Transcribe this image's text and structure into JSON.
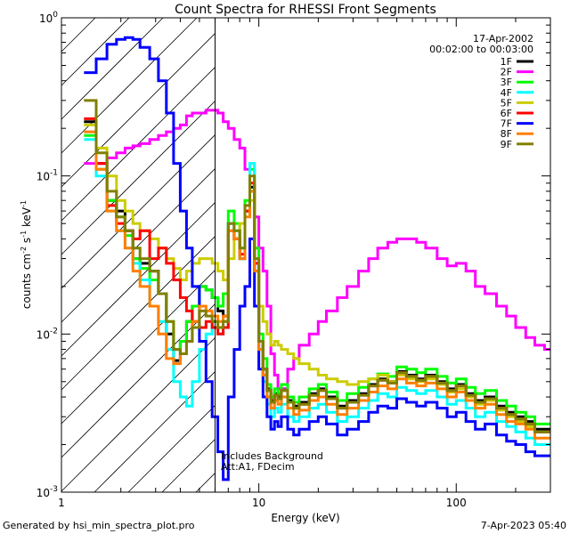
{
  "chart_data": {
    "type": "line",
    "title": "Count Spectra for RHESSI Front Segments",
    "xlabel": "Energy (keV)",
    "ylabel_parts": [
      "counts cm",
      "-2",
      " s",
      "-1",
      " keV",
      "-1"
    ],
    "xscale": "log",
    "yscale": "log",
    "xlim": [
      1.0,
      300
    ],
    "ylim": [
      0.001,
      1.0
    ],
    "xtick_labels": [
      "1",
      "10",
      "100"
    ],
    "xtick_values": [
      1,
      10,
      100
    ],
    "ytick_labels": [
      {
        "base": "10",
        "exp": "0",
        "value": 1
      },
      {
        "base": "10",
        "exp": "-1",
        "value": 0.1
      },
      {
        "base": "10",
        "exp": "-2",
        "value": 0.01
      },
      {
        "base": "10",
        "exp": "-3",
        "value": 0.001
      }
    ],
    "date": "17-Apr-2002",
    "time_range": "00:02:00 to 00:03:00",
    "attenuator_energy_keV": 6.0,
    "annotation_lines": [
      "Includes Background",
      "Att:A1, FDecim"
    ],
    "legend_placement": "top-right",
    "energy_edges": [
      1.3,
      1.5,
      1.7,
      1.9,
      2.1,
      2.3,
      2.5,
      2.8,
      3.1,
      3.4,
      3.7,
      4.0,
      4.3,
      4.6,
      5.0,
      5.4,
      5.8,
      6.2,
      6.6,
      7.0,
      7.5,
      8.0,
      8.5,
      9.0,
      9.5,
      10.0,
      10.5,
      11.0,
      11.5,
      12.0,
      12.5,
      13.0,
      14.0,
      15.0,
      16.0,
      18.0,
      20.0,
      22.0,
      25.0,
      28.0,
      32.0,
      36.0,
      40.0,
      45.0,
      50.0,
      56.0,
      63.0,
      70.0,
      80.0,
      90.0,
      100.0,
      112.0,
      125.0,
      140.0,
      160.0,
      180.0,
      200.0,
      225.0,
      250.0,
      280.0,
      300.0
    ],
    "series": [
      {
        "name": "1F",
        "color": "#000000",
        "values": [
          0.22,
          0.12,
          0.07,
          0.06,
          0.045,
          0.03,
          0.028,
          0.025,
          0.018,
          0.01,
          0.0068,
          0.009,
          0.012,
          0.015,
          0.02,
          0.019,
          0.017,
          0.014,
          0.013,
          0.05,
          0.04,
          0.03,
          0.06,
          0.085,
          0.025,
          0.009,
          0.006,
          0.0045,
          0.0038,
          0.0042,
          0.004,
          0.0045,
          0.0038,
          0.0035,
          0.0037,
          0.0042,
          0.0045,
          0.004,
          0.0035,
          0.0038,
          0.0042,
          0.0048,
          0.0052,
          0.005,
          0.0058,
          0.0055,
          0.0052,
          0.0055,
          0.005,
          0.0045,
          0.0048,
          0.0042,
          0.0038,
          0.004,
          0.0035,
          0.0032,
          0.003,
          0.0028,
          0.0025,
          0.0025
        ]
      },
      {
        "name": "2F",
        "color": "#ff00ff",
        "values": [
          0.12,
          0.12,
          0.13,
          0.14,
          0.15,
          0.155,
          0.16,
          0.17,
          0.18,
          0.19,
          0.2,
          0.21,
          0.24,
          0.25,
          0.25,
          0.26,
          0.26,
          0.25,
          0.22,
          0.2,
          0.17,
          0.15,
          0.11,
          0.08,
          0.055,
          0.035,
          0.025,
          0.015,
          0.0075,
          0.0055,
          0.0045,
          0.0045,
          0.006,
          0.007,
          0.0085,
          0.01,
          0.012,
          0.014,
          0.017,
          0.02,
          0.025,
          0.03,
          0.035,
          0.038,
          0.04,
          0.04,
          0.038,
          0.035,
          0.03,
          0.027,
          0.028,
          0.025,
          0.02,
          0.018,
          0.015,
          0.013,
          0.011,
          0.0095,
          0.0085,
          0.008
        ]
      },
      {
        "name": "3F",
        "color": "#00ff00",
        "values": [
          0.18,
          0.11,
          0.07,
          0.055,
          0.042,
          0.03,
          0.026,
          0.022,
          0.018,
          0.012,
          0.008,
          0.009,
          0.012,
          0.015,
          0.02,
          0.019,
          0.017,
          0.015,
          0.018,
          0.06,
          0.05,
          0.035,
          0.07,
          0.11,
          0.035,
          0.01,
          0.007,
          0.0048,
          0.004,
          0.0045,
          0.0042,
          0.0048,
          0.004,
          0.0037,
          0.004,
          0.0045,
          0.0048,
          0.0043,
          0.0038,
          0.0042,
          0.0046,
          0.0052,
          0.0056,
          0.0054,
          0.0062,
          0.006,
          0.0057,
          0.006,
          0.0054,
          0.0049,
          0.0052,
          0.0046,
          0.0042,
          0.0044,
          0.0038,
          0.0035,
          0.0032,
          0.003,
          0.0027,
          0.0027
        ]
      },
      {
        "name": "4F",
        "color": "#00ffff",
        "values": [
          0.17,
          0.1,
          0.06,
          0.045,
          0.035,
          0.028,
          0.022,
          0.015,
          0.012,
          0.008,
          0.005,
          0.004,
          0.0035,
          0.005,
          0.008,
          0.01,
          0.012,
          0.01,
          0.011,
          0.05,
          0.045,
          0.03,
          0.06,
          0.12,
          0.03,
          0.008,
          0.005,
          0.0036,
          0.003,
          0.0034,
          0.0032,
          0.0036,
          0.003,
          0.0028,
          0.003,
          0.0034,
          0.0036,
          0.0032,
          0.0028,
          0.003,
          0.0034,
          0.0038,
          0.0042,
          0.004,
          0.0046,
          0.0044,
          0.0042,
          0.0044,
          0.004,
          0.0036,
          0.0038,
          0.0034,
          0.003,
          0.0032,
          0.0028,
          0.0026,
          0.0024,
          0.0022,
          0.002,
          0.002
        ]
      },
      {
        "name": "5F",
        "color": "#cccc00",
        "values": [
          0.21,
          0.15,
          0.1,
          0.07,
          0.06,
          0.05,
          0.045,
          0.04,
          0.035,
          0.03,
          0.026,
          0.022,
          0.025,
          0.028,
          0.03,
          0.03,
          0.028,
          0.025,
          0.022,
          0.03,
          0.04,
          0.05,
          0.06,
          0.07,
          0.03,
          0.015,
          0.012,
          0.01,
          0.0085,
          0.009,
          0.0085,
          0.008,
          0.0075,
          0.007,
          0.0065,
          0.006,
          0.0055,
          0.0052,
          0.005,
          0.0048,
          0.005,
          0.0052,
          0.0055,
          0.005,
          0.0055,
          0.0052,
          0.005,
          0.0052,
          0.0048,
          0.0043,
          0.0045,
          0.004,
          0.0036,
          0.0038,
          0.0033,
          0.003,
          0.0028,
          0.0026,
          0.0024,
          0.0024
        ]
      },
      {
        "name": "6F",
        "color": "#ff0000",
        "values": [
          0.23,
          0.12,
          0.065,
          0.05,
          0.045,
          0.04,
          0.045,
          0.03,
          0.035,
          0.028,
          0.022,
          0.017,
          0.014,
          0.012,
          0.011,
          0.012,
          0.011,
          0.01,
          0.011,
          0.045,
          0.04,
          0.032,
          0.06,
          0.09,
          0.028,
          0.009,
          0.006,
          0.0044,
          0.0037,
          0.0041,
          0.0039,
          0.0044,
          0.0037,
          0.0034,
          0.0036,
          0.0041,
          0.0044,
          0.0039,
          0.0034,
          0.0037,
          0.0041,
          0.0047,
          0.0051,
          0.0049,
          0.0057,
          0.0054,
          0.0051,
          0.0054,
          0.0049,
          0.0044,
          0.0047,
          0.0041,
          0.0037,
          0.0039,
          0.0034,
          0.0031,
          0.0029,
          0.0027,
          0.0024,
          0.0024
        ]
      },
      {
        "name": "7F",
        "color": "#0000ff",
        "values": [
          0.45,
          0.55,
          0.68,
          0.73,
          0.75,
          0.73,
          0.65,
          0.55,
          0.4,
          0.25,
          0.12,
          0.06,
          0.035,
          0.02,
          0.009,
          0.005,
          0.003,
          0.0018,
          0.0012,
          0.004,
          0.008,
          0.015,
          0.02,
          0.04,
          0.015,
          0.006,
          0.004,
          0.003,
          0.0025,
          0.0028,
          0.0026,
          0.003,
          0.0025,
          0.0023,
          0.0025,
          0.0028,
          0.003,
          0.0027,
          0.0023,
          0.0025,
          0.0028,
          0.0032,
          0.0035,
          0.0034,
          0.0039,
          0.0037,
          0.0035,
          0.0037,
          0.0034,
          0.003,
          0.0032,
          0.0028,
          0.0025,
          0.0027,
          0.0023,
          0.0021,
          0.002,
          0.0018,
          0.0017,
          0.0017
        ]
      },
      {
        "name": "8F",
        "color": "#ff7f00",
        "values": [
          0.19,
          0.11,
          0.06,
          0.045,
          0.035,
          0.025,
          0.02,
          0.015,
          0.01,
          0.007,
          0.0065,
          0.0075,
          0.009,
          0.012,
          0.015,
          0.014,
          0.013,
          0.012,
          0.013,
          0.045,
          0.04,
          0.03,
          0.055,
          0.08,
          0.025,
          0.008,
          0.0055,
          0.004,
          0.0034,
          0.0038,
          0.0036,
          0.004,
          0.0034,
          0.0031,
          0.0033,
          0.0038,
          0.004,
          0.0036,
          0.0031,
          0.0034,
          0.0038,
          0.0043,
          0.0047,
          0.0045,
          0.0052,
          0.0049,
          0.0047,
          0.0049,
          0.0045,
          0.004,
          0.0043,
          0.0038,
          0.0034,
          0.0036,
          0.0031,
          0.0028,
          0.0027,
          0.0025,
          0.0022,
          0.0022
        ]
      },
      {
        "name": "9F",
        "color": "#808000",
        "values": [
          0.3,
          0.14,
          0.08,
          0.055,
          0.045,
          0.035,
          0.03,
          0.025,
          0.018,
          0.012,
          0.008,
          0.0075,
          0.009,
          0.011,
          0.014,
          0.013,
          0.012,
          0.011,
          0.012,
          0.05,
          0.045,
          0.035,
          0.065,
          0.1,
          0.03,
          0.009,
          0.006,
          0.0044,
          0.0037,
          0.0041,
          0.0039,
          0.0044,
          0.0037,
          0.0034,
          0.0036,
          0.0041,
          0.0044,
          0.0039,
          0.0034,
          0.0037,
          0.0041,
          0.0047,
          0.0051,
          0.0049,
          0.0057,
          0.0054,
          0.0051,
          0.0054,
          0.0049,
          0.0044,
          0.0047,
          0.0041,
          0.0037,
          0.0039,
          0.0034,
          0.0031,
          0.0029,
          0.0027,
          0.0024,
          0.0024
        ]
      }
    ]
  },
  "footer": {
    "generator": "Generated by hsi_min_spectra_plot.pro",
    "timestamp": "7-Apr-2023 05:40"
  }
}
